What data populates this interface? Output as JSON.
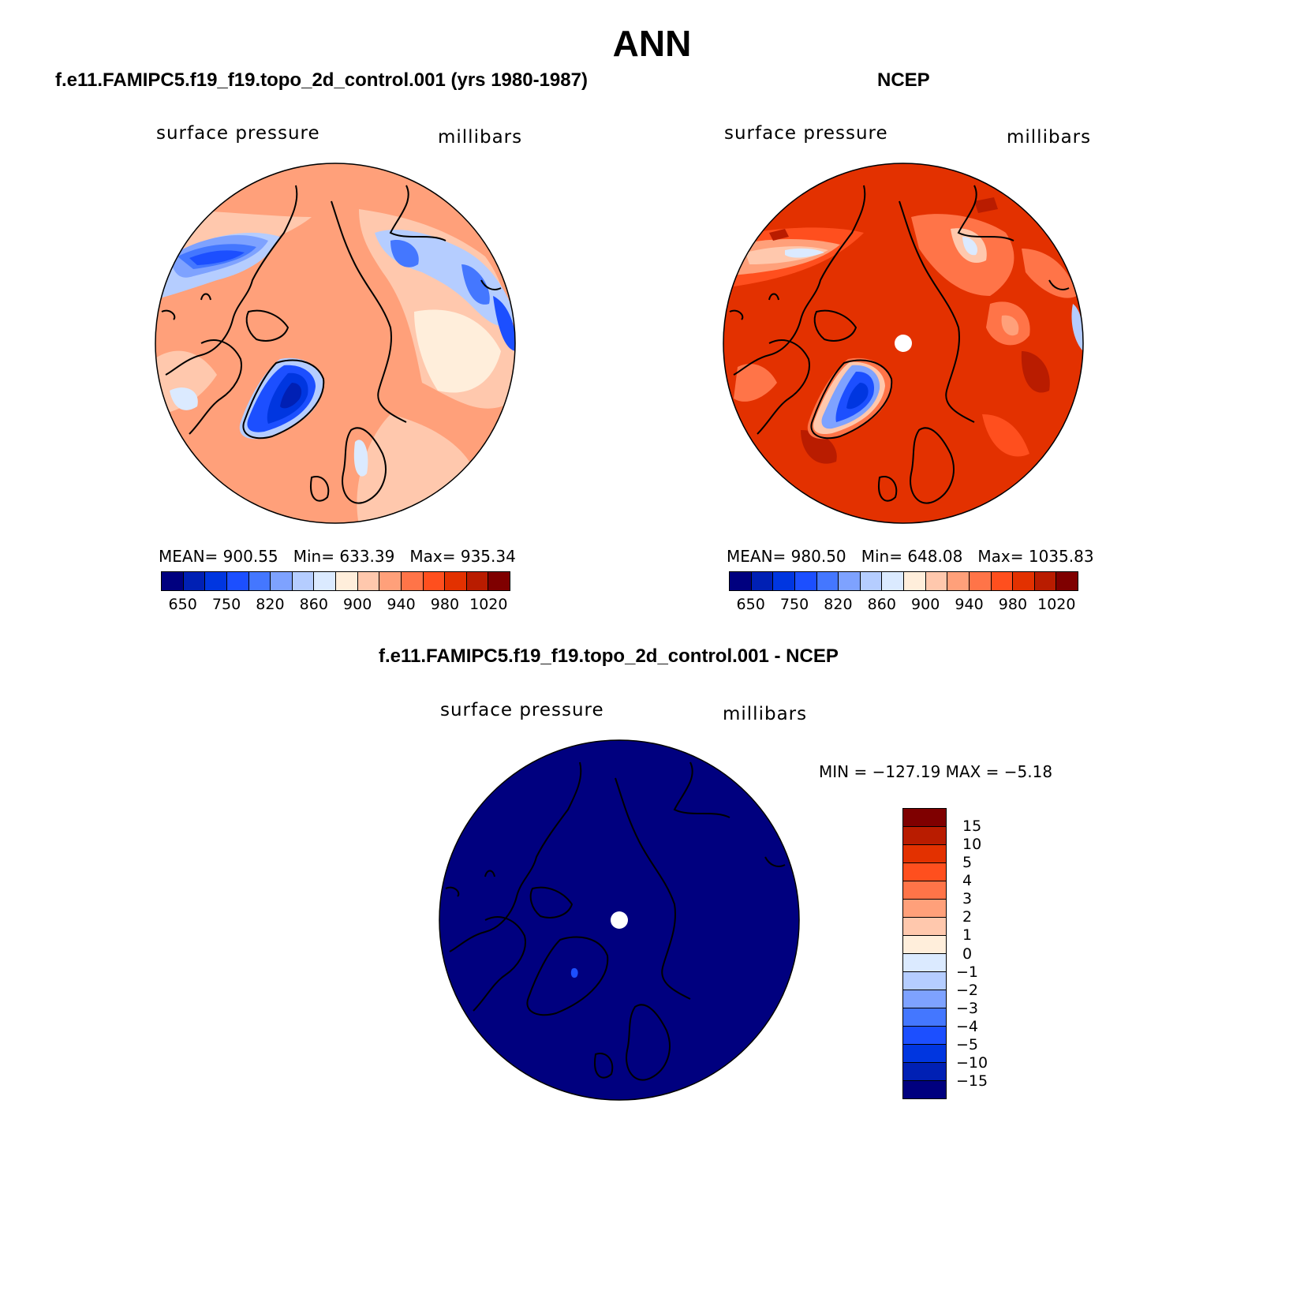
{
  "title": "ANN",
  "palette": [
    "#00007f",
    "#0020b4",
    "#0036e0",
    "#1c4fff",
    "#4477ff",
    "#7ea2ff",
    "#b5cdff",
    "#dbeaff",
    "#ffeedb",
    "#ffc8ad",
    "#ffa07a",
    "#ff7448",
    "#ff4f1e",
    "#e33100",
    "#b91c00",
    "#7f0000"
  ],
  "panels": [
    {
      "title": "f.e11.FAMIPC5.f19_f19.topo_2d_control.001 (yrs 1980-1987)",
      "variable": "surface pressure",
      "units": "millibars",
      "stats": {
        "mean_label": "MEAN=",
        "mean": "900.55",
        "min_label": "Min=",
        "min": "633.39",
        "max_label": "Max=",
        "max": "935.34"
      },
      "colorbar_ticks": [
        "650",
        "750",
        "820",
        "860",
        "900",
        "940",
        "980",
        "1020"
      ],
      "background_color": "#ffa07a",
      "center_hole": false
    },
    {
      "title": "NCEP",
      "variable": "surface pressure",
      "units": "millibars",
      "stats": {
        "mean_label": "MEAN=",
        "mean": "980.50",
        "min_label": "Min=",
        "min": "648.08",
        "max_label": "Max=",
        "max": "1035.83"
      },
      "colorbar_ticks": [
        "650",
        "750",
        "820",
        "860",
        "900",
        "940",
        "980",
        "1020"
      ],
      "background_color": "#e33100",
      "center_hole": true
    },
    {
      "title": "f.e11.FAMIPC5.f19_f19.topo_2d_control.001 - NCEP",
      "variable": "surface pressure",
      "units": "millibars",
      "stats": {
        "text": "MIN = −127.19 MAX =  −5.18"
      },
      "colorbar_ticks": [
        "15",
        "10",
        "5",
        "4",
        "3",
        "2",
        "1",
        "0",
        "−1",
        "−2",
        "−3",
        "−4",
        "−5",
        "−10",
        "−15"
      ],
      "background_color": "#00007f",
      "center_hole": true
    }
  ]
}
